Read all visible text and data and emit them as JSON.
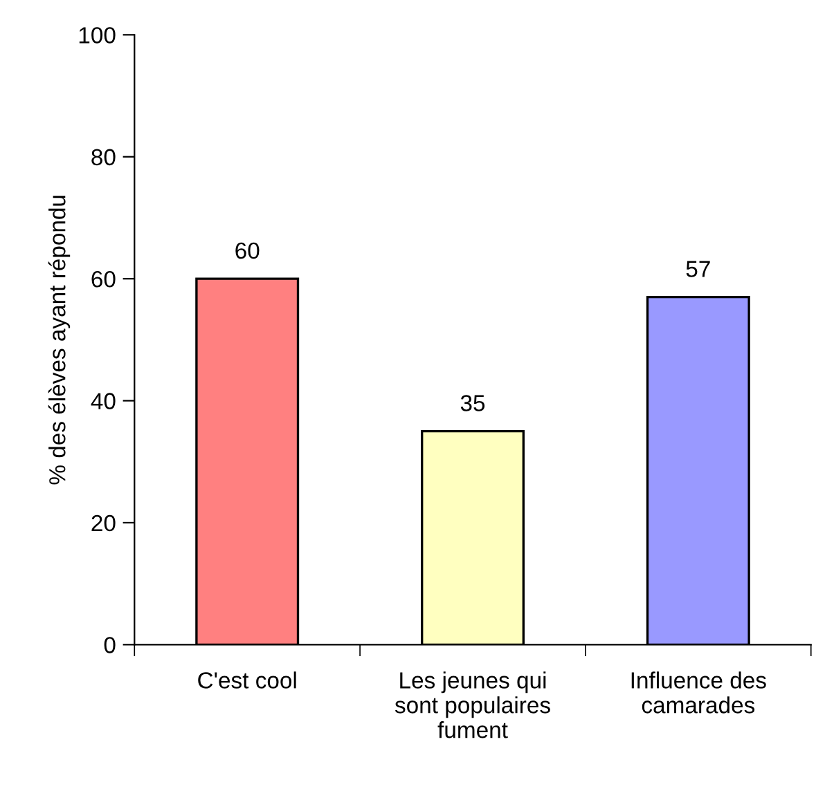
{
  "chart_data": {
    "type": "bar",
    "ylabel": "% des élèves ayant répondu",
    "categories": [
      "C'est cool",
      "Les jeunes qui\nsont populaires\nfument",
      "Influence des\ncamarades"
    ],
    "values": [
      60,
      35,
      57
    ],
    "colors": [
      "#ff8080",
      "#ffffc0",
      "#9999ff"
    ],
    "ylim": [
      0,
      100
    ],
    "yticks": [
      0,
      20,
      40,
      60,
      80,
      100
    ],
    "grid": false,
    "data_labels": true
  }
}
